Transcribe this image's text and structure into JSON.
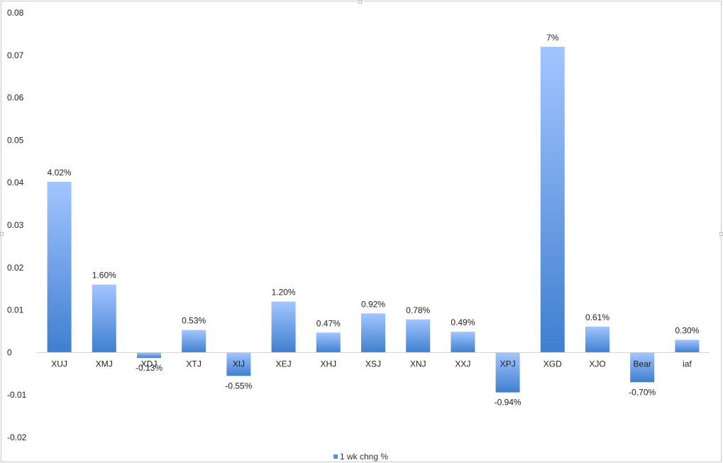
{
  "chart_data": {
    "type": "bar",
    "categories": [
      "XUJ",
      "XMJ",
      "XDJ",
      "XTJ",
      "XIJ",
      "XEJ",
      "XHJ",
      "XSJ",
      "XNJ",
      "XXJ",
      "XPJ",
      "XGD",
      "XJO",
      "Bear",
      "iaf"
    ],
    "values": [
      0.0402,
      0.016,
      -0.0013,
      0.0053,
      -0.0055,
      0.012,
      0.0047,
      0.0092,
      0.0078,
      0.0049,
      -0.0094,
      0.072,
      0.0061,
      -0.007,
      0.003
    ],
    "data_labels": [
      "4.02%",
      "1.60%",
      "-0.13%",
      "0.53%",
      "-0.55%",
      "1.20%",
      "0.47%",
      "0.92%",
      "0.78%",
      "0.49%",
      "-0.94%",
      "7%",
      "0.61%",
      "-0.70%",
      "0.30%"
    ],
    "y_ticks": [
      "0.08",
      "0.07",
      "0.06",
      "0.05",
      "0.04",
      "0.03",
      "0.02",
      "0.01",
      "0",
      "-0.01",
      "-0.02"
    ],
    "ylim": [
      -0.02,
      0.08
    ],
    "legend": {
      "position": "bottom",
      "entries": [
        "1 wk chng %"
      ]
    },
    "series": [
      {
        "name": "1 wk chng %",
        "color_top": "#a3c5ff",
        "color_bottom": "#3f7fcf"
      }
    ],
    "grid": false
  }
}
